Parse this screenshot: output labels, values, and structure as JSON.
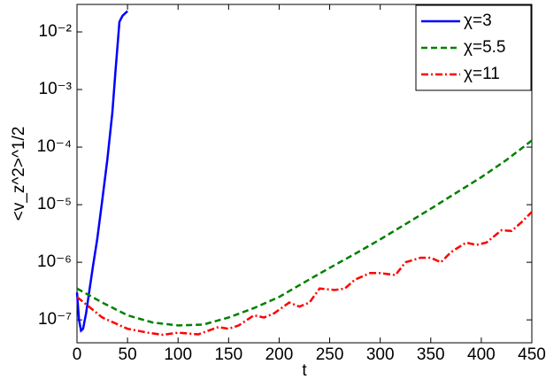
{
  "chart_data": {
    "type": "line",
    "x_label": "t",
    "y_label": "<v_z^2>^1/2",
    "xlim": [
      0,
      450
    ],
    "ylim": [
      4e-08,
      0.03
    ],
    "log_y": true,
    "legend": "upper right",
    "xticks": [
      0,
      50,
      100,
      150,
      200,
      250,
      300,
      350,
      400,
      450
    ],
    "yticks": [
      {
        "value": 1e-07,
        "label": "10⁻⁷"
      },
      {
        "value": 1e-06,
        "label": "10⁻⁶"
      },
      {
        "value": 1e-05,
        "label": "10⁻⁵"
      },
      {
        "value": 0.0001,
        "label": "10⁻⁴"
      },
      {
        "value": 0.001,
        "label": "10⁻³"
      },
      {
        "value": 0.01,
        "label": "10⁻²"
      }
    ],
    "series": [
      {
        "name": "χ=3",
        "color": "#0000ff",
        "dash": "none",
        "x": [
          0,
          2,
          4,
          6,
          9,
          12,
          16,
          20,
          25,
          30,
          35,
          38,
          42,
          45,
          50
        ],
        "values": [
          3e-07,
          1e-07,
          6.5e-08,
          7e-08,
          1.3e-07,
          3e-07,
          9e-07,
          2.5e-06,
          1.2e-05,
          6e-05,
          0.0004,
          0.002,
          0.015,
          0.019,
          0.023
        ]
      },
      {
        "name": "χ=5.5",
        "color": "#008000",
        "dash": "7 4",
        "x": [
          0,
          10,
          25,
          50,
          75,
          100,
          125,
          150,
          175,
          200,
          225,
          250,
          275,
          300,
          325,
          350,
          375,
          400,
          425,
          450
        ],
        "values": [
          3.5e-07,
          2.8e-07,
          2e-07,
          1.2e-07,
          9e-08,
          8e-08,
          8.3e-08,
          1.1e-07,
          1.6e-07,
          2.5e-07,
          4.5e-07,
          8e-07,
          1.4e-06,
          2.5e-06,
          4.6e-06,
          8.5e-06,
          1.6e-05,
          3e-05,
          6e-05,
          0.00013
        ]
      },
      {
        "name": "χ=11",
        "color": "#ff0000",
        "dash": "8 3 2 3",
        "x": [
          0,
          10,
          25,
          50,
          70,
          85,
          100,
          120,
          130,
          140,
          150,
          160,
          175,
          185,
          195,
          210,
          220,
          230,
          240,
          255,
          265,
          275,
          290,
          300,
          315,
          325,
          340,
          350,
          360,
          370,
          385,
          395,
          405,
          420,
          430,
          440,
          450
        ],
        "values": [
          2.5e-07,
          1.8e-07,
          1.1e-07,
          7e-08,
          6e-08,
          5.5e-08,
          6e-08,
          5.6e-08,
          6.5e-08,
          7.5e-08,
          7e-08,
          8e-08,
          1.2e-07,
          1.1e-07,
          1.3e-07,
          2e-07,
          1.7e-07,
          2e-07,
          3.5e-07,
          3.3e-07,
          3.5e-07,
          5e-07,
          6.5e-07,
          6.5e-07,
          6e-07,
          1e-06,
          1.2e-06,
          1.2e-06,
          1e-06,
          1.5e-06,
          2.2e-06,
          2e-06,
          2.2e-06,
          3.6e-06,
          3.5e-06,
          5e-06,
          7.5e-06
        ]
      }
    ]
  }
}
